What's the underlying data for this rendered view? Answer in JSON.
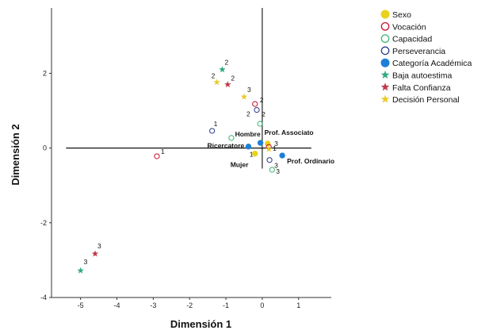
{
  "chart_data": {
    "type": "scatter",
    "xlabel": "Dimensión 1",
    "ylabel": "Dimensión 2",
    "xlim": [
      -5.8,
      1.9
    ],
    "ylim": [
      -4.0,
      3.75
    ],
    "xticks": [
      "-5",
      "-4",
      "-3",
      "-2",
      "-1",
      "0",
      "1"
    ],
    "yticks": [
      "-4",
      "-2",
      "0",
      "2"
    ],
    "legend_position": "top-right",
    "series": [
      {
        "name": "Sexo",
        "marker": "filled-circle",
        "color": "#e8d21d",
        "points": [
          {
            "x": 0.15,
            "y": 0.12,
            "label": ""
          },
          {
            "x": -0.2,
            "y": -0.15,
            "label": ""
          }
        ]
      },
      {
        "name": "Vocación",
        "marker": "open-circle",
        "color": "#c8102e",
        "points": [
          {
            "x": -2.9,
            "y": -0.22,
            "label": "1"
          },
          {
            "x": -0.2,
            "y": 1.18,
            "label": "2"
          },
          {
            "x": 0.18,
            "y": 0.03,
            "label": "3"
          }
        ]
      },
      {
        "name": "Capacidad",
        "marker": "open-circle",
        "color": "#3cb371",
        "points": [
          {
            "x": -0.85,
            "y": 0.27,
            "label": ""
          },
          {
            "x": -0.06,
            "y": 0.65,
            "label": "2"
          },
          {
            "x": 0.27,
            "y": -0.58,
            "label": "3"
          }
        ]
      },
      {
        "name": "Perseverancia",
        "marker": "open-circle",
        "color": "#2b3a8c",
        "points": [
          {
            "x": -1.38,
            "y": 0.46,
            "label": "1"
          },
          {
            "x": -0.15,
            "y": 1.02,
            "label": "2"
          },
          {
            "x": 0.2,
            "y": -0.32,
            "label": "3"
          }
        ]
      },
      {
        "name": "Categoría Académica",
        "marker": "filled-circle",
        "color": "#1f7fd6",
        "points": [
          {
            "x": -0.38,
            "y": 0.04,
            "label": "Ricercatore"
          },
          {
            "x": -0.05,
            "y": 0.14,
            "label": "Prof. Associato"
          },
          {
            "x": 0.55,
            "y": -0.2,
            "label": "Prof. Ordinario"
          }
        ]
      },
      {
        "name": "Baja autoestima",
        "marker": "star",
        "color": "#2fa882",
        "points": [
          {
            "x": -1.1,
            "y": 2.1,
            "label": "2"
          },
          {
            "x": -5.0,
            "y": -3.28,
            "label": "3"
          }
        ]
      },
      {
        "name": "Falta Confianza",
        "marker": "star",
        "color": "#c0394b",
        "points": [
          {
            "x": -0.95,
            "y": 1.7,
            "label": "2"
          },
          {
            "x": -4.6,
            "y": -2.83,
            "label": "3"
          }
        ]
      },
      {
        "name": "Decisión Personal",
        "marker": "star",
        "color": "#eacb2b",
        "points": [
          {
            "x": -1.25,
            "y": 1.76,
            "label": "2"
          },
          {
            "x": -0.5,
            "y": 1.37,
            "label": "3"
          },
          {
            "x": 0.18,
            "y": -0.03,
            "label": "1"
          }
        ]
      }
    ],
    "annotations": [
      {
        "text": "Hombre",
        "x": -0.05,
        "y": 0.14
      },
      {
        "text": "Mujer",
        "x": -0.2,
        "y": -0.15
      },
      {
        "text": "1",
        "x": -0.2,
        "y": -0.15
      }
    ]
  }
}
